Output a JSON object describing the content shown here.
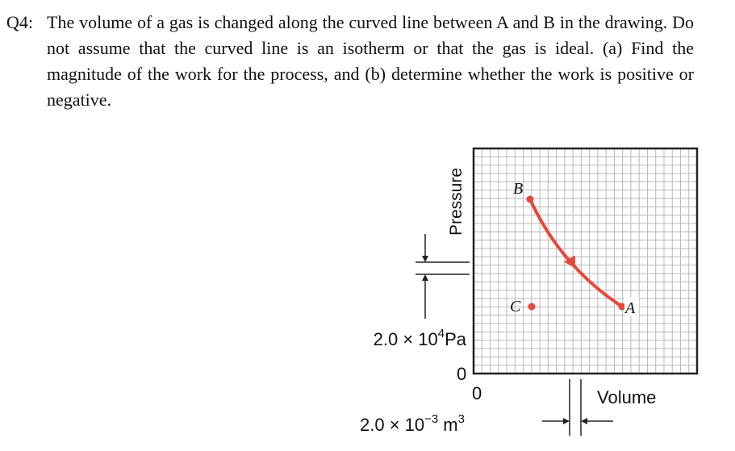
{
  "question": {
    "number": "Q4:",
    "text": "The volume of a gas is changed along the curved line between A and B in the drawing. Do not assume that the curved line is an isotherm or that the gas is ideal. (a) Find the magnitude of the work for the process, and (b) determine whether the work is positive or negative."
  },
  "diagram": {
    "y_axis_label": "Pressure",
    "x_axis_label": "Volume",
    "points": [
      {
        "label": "B"
      },
      {
        "label": "C"
      },
      {
        "label": "A"
      }
    ],
    "pressure_scale": {
      "mantissa": "2.0 × 10",
      "exponent": "4",
      "unit": "Pa"
    },
    "volume_scale": {
      "mantissa": "2.0 × 10",
      "exponent": "−3",
      "unit": "m",
      "unit_exponent": "3"
    },
    "origin_labels": [
      "0",
      "0"
    ]
  }
}
